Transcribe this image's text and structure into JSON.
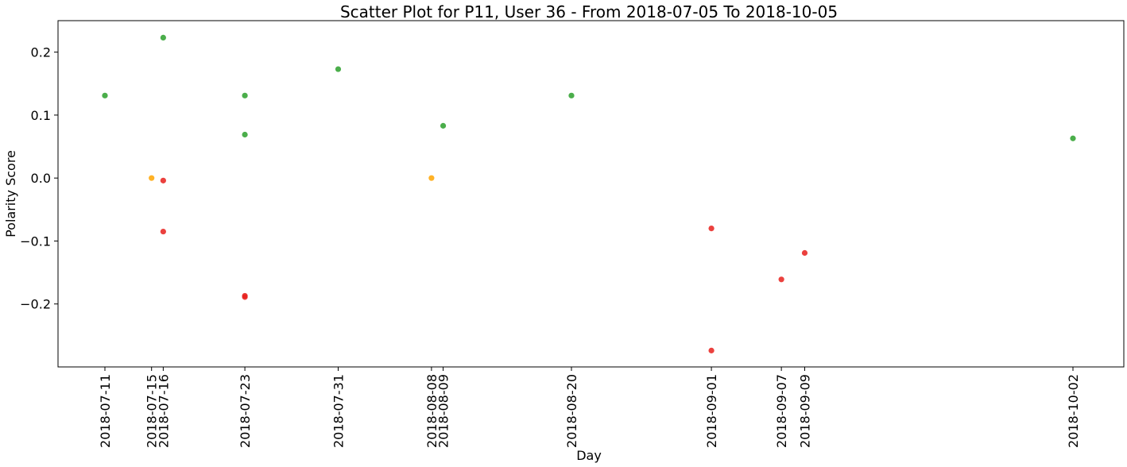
{
  "chart_data": {
    "type": "scatter",
    "title": "Scatter Plot for P11, User 36 - From 2018-07-05 To 2018-10-05",
    "xlabel": "Day",
    "ylabel": "Polarity Score",
    "x_tick_labels": [
      "2018-07-11",
      "2018-07-15",
      "2018-07-16",
      "2018-07-23",
      "2018-07-31",
      "2018-08-08",
      "2018-08-09",
      "2018-08-20",
      "2018-09-01",
      "2018-09-07",
      "2018-09-09",
      "2018-10-02"
    ],
    "x_tick_days": [
      6,
      10,
      11,
      18,
      26,
      34,
      35,
      46,
      58,
      64,
      66,
      89
    ],
    "xlim": [
      6,
      89
    ],
    "ylim": [
      -0.3,
      0.25
    ],
    "y_ticks": [
      -0.2,
      -0.1,
      0.0,
      0.1,
      0.2
    ],
    "y_tick_labels": [
      "−0.2",
      "−0.1",
      "0.0",
      "0.1",
      "0.2"
    ],
    "colors": {
      "positive": "#2ca02c",
      "neutral": "#ffa500",
      "negative": "#e8201c"
    },
    "points": [
      {
        "day": 6,
        "date": "2018-07-11",
        "value": 0.131,
        "sentiment": "positive"
      },
      {
        "day": 10,
        "date": "2018-07-15",
        "value": 0.0,
        "sentiment": "neutral"
      },
      {
        "day": 11,
        "date": "2018-07-16",
        "value": 0.223,
        "sentiment": "positive"
      },
      {
        "day": 11,
        "date": "2018-07-16",
        "value": -0.004,
        "sentiment": "negative"
      },
      {
        "day": 11,
        "date": "2018-07-16",
        "value": -0.085,
        "sentiment": "negative"
      },
      {
        "day": 18,
        "date": "2018-07-23",
        "value": 0.131,
        "sentiment": "positive"
      },
      {
        "day": 18,
        "date": "2018-07-23",
        "value": 0.069,
        "sentiment": "positive"
      },
      {
        "day": 18,
        "date": "2018-07-23",
        "value": -0.187,
        "sentiment": "negative"
      },
      {
        "day": 18,
        "date": "2018-07-23",
        "value": -0.189,
        "sentiment": "negative"
      },
      {
        "day": 26,
        "date": "2018-07-31",
        "value": 0.173,
        "sentiment": "positive"
      },
      {
        "day": 34,
        "date": "2018-08-08",
        "value": 0.0,
        "sentiment": "neutral"
      },
      {
        "day": 35,
        "date": "2018-08-09",
        "value": 0.083,
        "sentiment": "positive"
      },
      {
        "day": 46,
        "date": "2018-08-20",
        "value": 0.131,
        "sentiment": "positive"
      },
      {
        "day": 58,
        "date": "2018-09-01",
        "value": -0.08,
        "sentiment": "negative"
      },
      {
        "day": 58,
        "date": "2018-09-01",
        "value": -0.274,
        "sentiment": "negative"
      },
      {
        "day": 64,
        "date": "2018-09-07",
        "value": -0.161,
        "sentiment": "negative"
      },
      {
        "day": 66,
        "date": "2018-09-09",
        "value": -0.119,
        "sentiment": "negative"
      },
      {
        "day": 89,
        "date": "2018-10-02",
        "value": 0.063,
        "sentiment": "positive"
      }
    ]
  }
}
